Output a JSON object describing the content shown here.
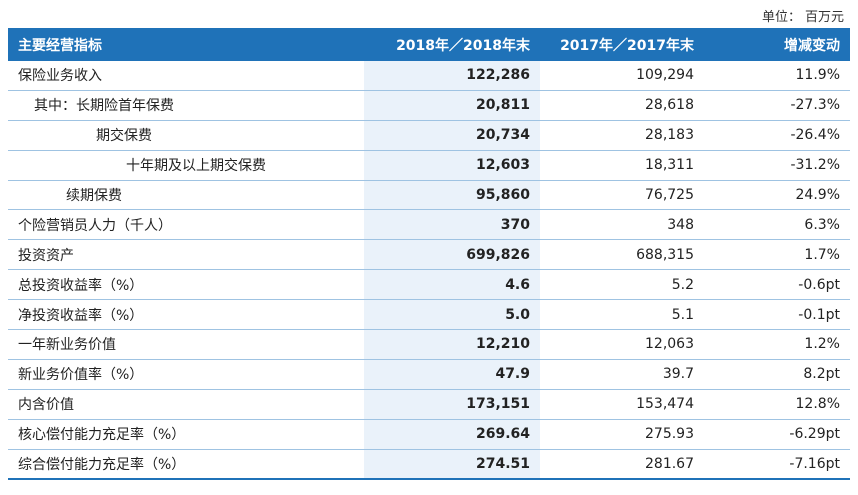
{
  "unit_label": "单位：",
  "unit_value": "百万元",
  "header": {
    "col0": "主要经营指标",
    "col1": "2018年／2018年末",
    "col2": "2017年／2017年末",
    "col3": "增减变动"
  },
  "rows": [
    {
      "label": "保险业务收入",
      "indent": 0,
      "v2018": "122,286",
      "v2017": "109,294",
      "change": "11.9%"
    },
    {
      "label": "其中：长期险首年保费",
      "indent": 1,
      "v2018": "20,811",
      "v2017": "28,618",
      "change": "-27.3%"
    },
    {
      "label": "期交保费",
      "indent": 2,
      "v2018": "20,734",
      "v2017": "28,183",
      "change": "-26.4%"
    },
    {
      "label": "十年期及以上期交保费",
      "indent": 3,
      "v2018": "12,603",
      "v2017": "18,311",
      "change": "-31.2%"
    },
    {
      "label": "续期保费",
      "indent": 4,
      "v2018": "95,860",
      "v2017": "76,725",
      "change": "24.9%"
    },
    {
      "label": "个险营销员人力（千人）",
      "indent": 0,
      "v2018": "370",
      "v2017": "348",
      "change": "6.3%"
    },
    {
      "label": "投资资产",
      "indent": 0,
      "v2018": "699,826",
      "v2017": "688,315",
      "change": "1.7%"
    },
    {
      "label": "总投资收益率（%）",
      "indent": 0,
      "v2018": "4.6",
      "v2017": "5.2",
      "change": "-0.6pt"
    },
    {
      "label": "净投资收益率（%）",
      "indent": 0,
      "v2018": "5.0",
      "v2017": "5.1",
      "change": "-0.1pt"
    },
    {
      "label": "一年新业务价值",
      "indent": 0,
      "v2018": "12,210",
      "v2017": "12,063",
      "change": "1.2%"
    },
    {
      "label": "新业务价值率（%）",
      "indent": 0,
      "v2018": "47.9",
      "v2017": "39.7",
      "change": "8.2pt"
    },
    {
      "label": "内含价值",
      "indent": 0,
      "v2018": "173,151",
      "v2017": "153,474",
      "change": "12.8%"
    },
    {
      "label": "核心偿付能力充足率（%）",
      "indent": 0,
      "v2018": "269.64",
      "v2017": "275.93",
      "change": "-6.29pt"
    },
    {
      "label": "综合偿付能力充足率（%）",
      "indent": 0,
      "v2018": "274.51",
      "v2017": "281.67",
      "change": "-7.16pt"
    }
  ]
}
